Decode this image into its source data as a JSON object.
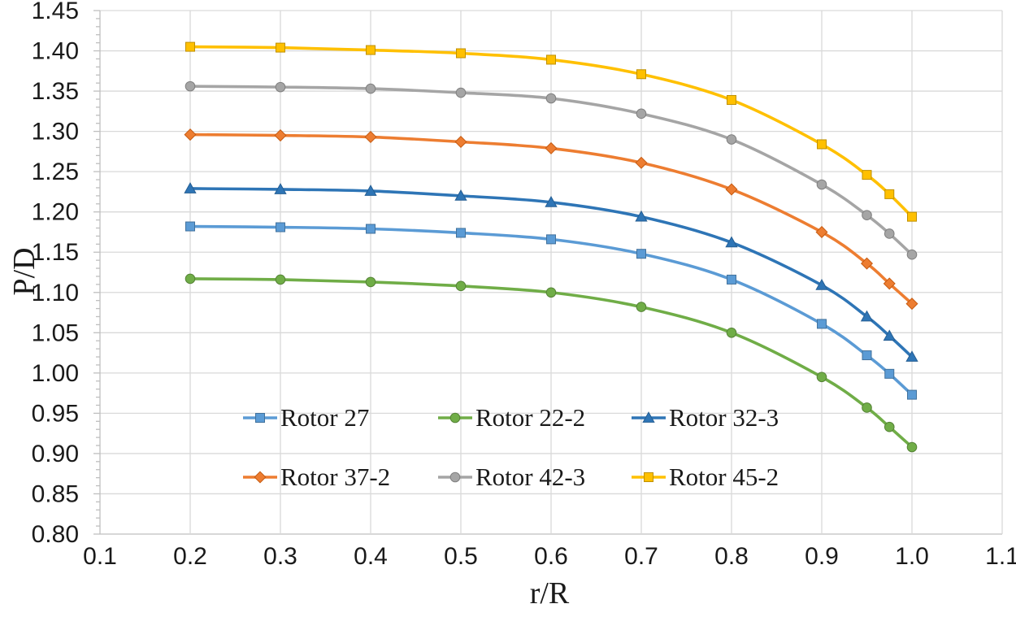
{
  "styles": {
    "grid_color": "#D9D9D9",
    "axis_color": "#BFBFBF",
    "text_color": "#1a1a1a"
  },
  "chart_data": {
    "type": "line",
    "title": "",
    "xlabel": "r/R",
    "ylabel": "P/D",
    "grid": true,
    "legend_position": "inside-bottom",
    "xlim": [
      0.1,
      1.1
    ],
    "ylim": [
      0.8,
      1.45
    ],
    "x_ticks": [
      0.1,
      0.2,
      0.3,
      0.4,
      0.5,
      0.6,
      0.7,
      0.8,
      0.9,
      1.0,
      1.1
    ],
    "y_ticks": [
      0.8,
      0.85,
      0.9,
      0.95,
      1.0,
      1.05,
      1.1,
      1.15,
      1.2,
      1.25,
      1.3,
      1.35,
      1.4,
      1.45
    ],
    "y_minor_step": 0.01,
    "x": [
      0.2,
      0.3,
      0.4,
      0.5,
      0.6,
      0.7,
      0.8,
      0.9,
      0.95,
      0.975,
      1.0
    ],
    "series": [
      {
        "name": "Rotor 27",
        "color": "#5B9BD5",
        "border": "#41719C",
        "marker": "square",
        "values": [
          1.182,
          1.181,
          1.179,
          1.174,
          1.166,
          1.148,
          1.116,
          1.061,
          1.022,
          0.999,
          0.973
        ]
      },
      {
        "name": "Rotor 22-2",
        "color": "#70AD47",
        "border": "#548235",
        "marker": "circle",
        "values": [
          1.117,
          1.116,
          1.113,
          1.108,
          1.1,
          1.082,
          1.05,
          0.995,
          0.957,
          0.933,
          0.908
        ]
      },
      {
        "name": "Rotor 32-3",
        "color": "#2E75B6",
        "border": "#255E93",
        "marker": "triangle",
        "values": [
          1.229,
          1.228,
          1.226,
          1.22,
          1.212,
          1.194,
          1.162,
          1.109,
          1.07,
          1.046,
          1.02
        ]
      },
      {
        "name": "Rotor 37-2",
        "color": "#ED7D31",
        "border": "#C55A11",
        "marker": "diamond",
        "values": [
          1.296,
          1.295,
          1.293,
          1.287,
          1.279,
          1.261,
          1.228,
          1.175,
          1.136,
          1.111,
          1.086
        ]
      },
      {
        "name": "Rotor 42-3",
        "color": "#A5A5A5",
        "border": "#7F7F7F",
        "marker": "circle",
        "values": [
          1.356,
          1.355,
          1.353,
          1.348,
          1.341,
          1.322,
          1.29,
          1.234,
          1.196,
          1.173,
          1.147
        ]
      },
      {
        "name": "Rotor 45-2",
        "color": "#FFC000",
        "border": "#BF9000",
        "marker": "square",
        "values": [
          1.405,
          1.404,
          1.401,
          1.397,
          1.389,
          1.371,
          1.339,
          1.284,
          1.246,
          1.222,
          1.194
        ]
      }
    ],
    "legend_order": [
      "Rotor 27",
      "Rotor 22-2",
      "Rotor 32-3",
      "Rotor 37-2",
      "Rotor 42-3",
      "Rotor 45-2"
    ]
  }
}
